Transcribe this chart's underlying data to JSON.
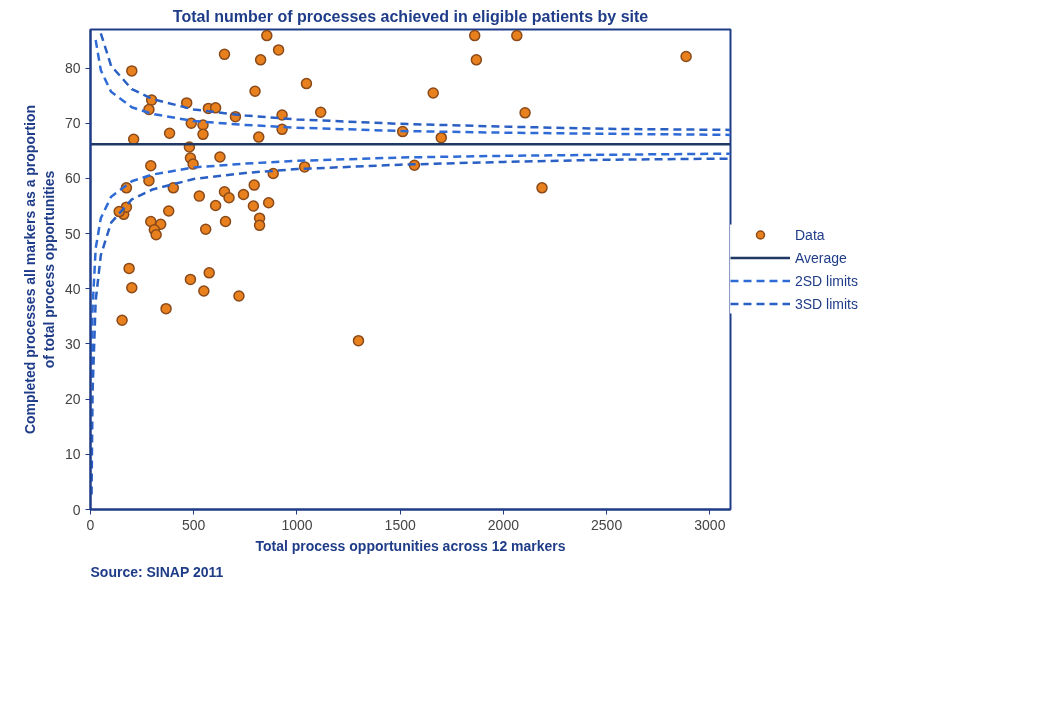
{
  "chart_data": {
    "type": "scatter",
    "title": "Total number of processes achieved in eligible patients by site",
    "xlabel": "Total process opportunities across 12 markers",
    "ylabel": "Completed processes all markers as a proportion of total process opportunities",
    "annotations": [
      "Source: SINAP 2011"
    ],
    "xlim": [
      0,
      3100
    ],
    "ylim": [
      0,
      87
    ],
    "xticks": [
      0,
      500,
      1000,
      1500,
      2000,
      2500,
      3000
    ],
    "yticks": [
      0,
      10,
      20,
      30,
      40,
      50,
      60,
      70,
      80
    ],
    "grid": false,
    "legend": "right",
    "marker": "circle",
    "series": [
      {
        "name": "Data",
        "color": "#e8801e",
        "x": [
          296,
          283,
          466,
          571,
          606,
          702,
          928,
          488,
          545,
          545,
          383,
          209,
          815,
          928,
          479,
          484,
          497,
          627,
          292,
          283,
          174,
          401,
          527,
          649,
          671,
          741,
          793,
          885,
          1037,
          606,
          789,
          863,
          161,
          174,
          139,
          379,
          292,
          340,
          309,
          318,
          558,
          654,
          819,
          819,
          854,
          911,
          824,
          649,
          200,
          797,
          1046,
          187,
          200,
          153,
          366,
          484,
          575,
          549,
          719,
          1298,
          1861,
          2065,
          1869,
          1660,
          1115,
          2105,
          1512,
          1699,
          1569,
          2187,
          2885
        ],
        "values": [
          74.2,
          72.5,
          73.7,
          72.7,
          72.8,
          71.2,
          71.5,
          70.0,
          69.7,
          68.0,
          68.2,
          67.1,
          67.5,
          68.9,
          65.7,
          63.7,
          62.6,
          63.9,
          62.3,
          59.6,
          58.3,
          58.3,
          56.8,
          57.6,
          56.5,
          57.1,
          58.8,
          60.9,
          62.1,
          55.1,
          55.0,
          55.6,
          53.5,
          54.8,
          54.0,
          54.1,
          52.2,
          51.7,
          50.7,
          49.8,
          50.8,
          52.2,
          52.8,
          51.5,
          85.9,
          83.3,
          81.5,
          82.5,
          79.5,
          75.8,
          77.2,
          43.7,
          40.2,
          34.3,
          36.4,
          41.7,
          42.9,
          39.6,
          38.7,
          30.6,
          85.9,
          85.9,
          81.5,
          75.5,
          72.0,
          71.9,
          68.5,
          67.4,
          62.4,
          58.3,
          82.1
        ]
      },
      {
        "name": "Average",
        "type": "line",
        "color": "#1f3864",
        "line_style": "solid",
        "marker": "none",
        "x": [
          0,
          3100
        ],
        "values": [
          66.2,
          66.2
        ]
      },
      {
        "name": "2SD limits",
        "type": "line",
        "color": "#2f6bd6",
        "line_style": "dashed",
        "marker": "none",
        "x": [
          25,
          50,
          100,
          200,
          300,
          500,
          750,
          1000,
          1500,
          2000,
          2500,
          3100
        ],
        "values": [
          85.1,
          79.6,
          75.7,
          72.9,
          71.7,
          70.4,
          69.7,
          69.2,
          68.6,
          68.3,
          68.1,
          67.9
        ]
      },
      {
        "type": "line",
        "color": "#2f6bd6",
        "line_style": "dashed",
        "marker": "none",
        "x": [
          5,
          10,
          25,
          50,
          100,
          200,
          300,
          500,
          750,
          1000,
          1500,
          2000,
          2500,
          3100
        ],
        "values": [
          23.9,
          36.3,
          47.3,
          52.8,
          56.7,
          59.5,
          60.7,
          62.0,
          62.7,
          63.2,
          63.8,
          64.1,
          64.3,
          64.5
        ]
      },
      {
        "name": "3SD limits",
        "type": "line",
        "color": "#2a5fc4",
        "line_style": "dashed",
        "marker": "none",
        "x": [
          50,
          100,
          200,
          300,
          500,
          750,
          1000,
          1500,
          2000,
          2500,
          3100
        ],
        "values": [
          86.3,
          80.4,
          76.2,
          74.4,
          72.5,
          71.4,
          70.7,
          69.9,
          69.4,
          69.0,
          68.8
        ]
      },
      {
        "type": "line",
        "color": "#2a5fc4",
        "line_style": "dashed",
        "marker": "none",
        "x": [
          5,
          10,
          25,
          50,
          100,
          200,
          300,
          500,
          750,
          1000,
          1500,
          2000,
          2500,
          3100
        ],
        "values": [
          2.7,
          21.3,
          37.8,
          46.1,
          52.0,
          56.2,
          58.0,
          59.9,
          61.0,
          61.7,
          62.5,
          63.0,
          63.4,
          63.6
        ]
      }
    ]
  }
}
